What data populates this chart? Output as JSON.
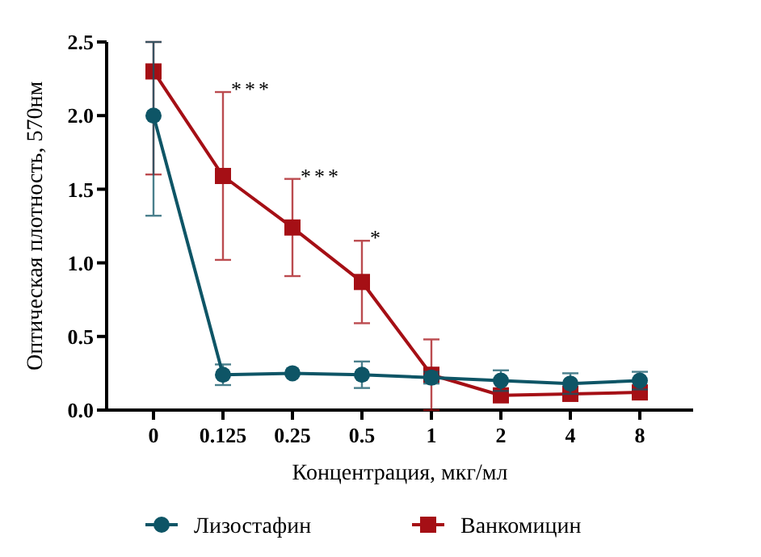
{
  "chart_data": {
    "type": "line",
    "xlabel": "Концентрация, мкг/мл",
    "ylabel": "Оптическая плотность, 570нм",
    "categories": [
      "0",
      "0.125",
      "0.25",
      "0.5",
      "1",
      "2",
      "4",
      "8"
    ],
    "ylim": [
      0,
      2.5
    ],
    "yticks": [
      {
        "value": 0,
        "label": "0.0"
      },
      0.5,
      {
        "value": 1,
        "label": "1.0"
      },
      1.5,
      {
        "value": 2,
        "label": "2.0"
      },
      2.5
    ],
    "grid": false,
    "legend": "bottom",
    "series": [
      {
        "name": "Лизостафин",
        "color": "#0e5566",
        "marker": "circle",
        "values": [
          2.0,
          0.24,
          0.25,
          0.24,
          0.22,
          0.2,
          0.18,
          0.2
        ],
        "errors": [
          [
            1.32,
            2.5
          ],
          0.07,
          null,
          0.09,
          0.04,
          0.07,
          0.07,
          0.06
        ]
      },
      {
        "name": "Ванкомицин",
        "color": "#a50f15",
        "marker": "square",
        "values": [
          2.3,
          1.59,
          1.24,
          0.87,
          0.24,
          0.1,
          0.11,
          0.12
        ],
        "errors": [
          [
            1.6,
            2.5
          ],
          [
            1.02,
            2.16
          ],
          [
            0.91,
            1.57
          ],
          [
            0.59,
            1.15
          ],
          [
            0,
            0.48
          ],
          null,
          null,
          null
        ]
      }
    ],
    "annotations": [
      {
        "text": "***",
        "x": "0.125",
        "y": 2.16
      },
      {
        "text": "***",
        "x": "0.25",
        "y": 1.57
      },
      {
        "text": "*",
        "x": "0.5",
        "y": 1.15
      }
    ]
  }
}
